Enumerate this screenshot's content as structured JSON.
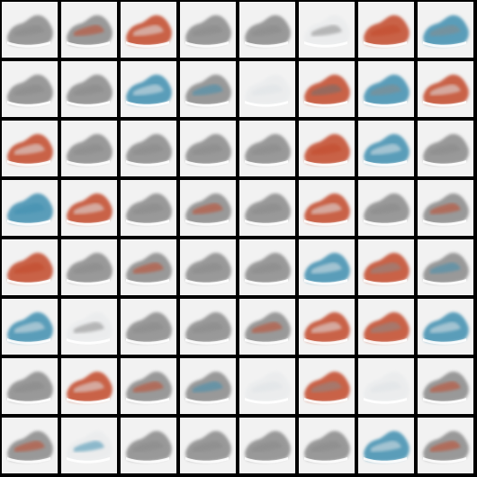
{
  "grid": {
    "rows": 8,
    "cols": 8,
    "background": "#000000",
    "tile_background": "#f2f2f2",
    "palette": {
      "gray": "#8a8a8a",
      "dark_gray": "#6f6f6f",
      "red": "#c24a2c",
      "blue": "#3f8fb0",
      "light": "#dfe3e6"
    },
    "tiles": [
      [
        "gray",
        "gray-red",
        "red-light",
        "gray",
        "gray",
        "light-gray",
        "red",
        "blue-gray"
      ],
      [
        "gray",
        "gray",
        "blue-light",
        "gray-blue",
        "light",
        "red-dark",
        "blue-gray",
        "red-light"
      ],
      [
        "red-light",
        "gray",
        "gray",
        "gray",
        "gray",
        "red",
        "blue-light",
        "gray"
      ],
      [
        "blue",
        "red-light",
        "gray",
        "gray-red",
        "gray",
        "red-light",
        "gray",
        "gray-red"
      ],
      [
        "red",
        "gray",
        "gray-red",
        "gray",
        "gray",
        "blue-light",
        "red-gray",
        "gray-blue"
      ],
      [
        "blue-light",
        "light-gray",
        "gray",
        "gray",
        "gray-red",
        "red-light",
        "red-gray",
        "blue-light"
      ],
      [
        "gray",
        "red-light",
        "gray-red",
        "gray-blue",
        "light",
        "red-gray",
        "light",
        "gray-red"
      ],
      [
        "gray-red",
        "light-blue",
        "gray",
        "gray",
        "gray",
        "gray",
        "blue-light",
        "gray-red"
      ]
    ]
  }
}
